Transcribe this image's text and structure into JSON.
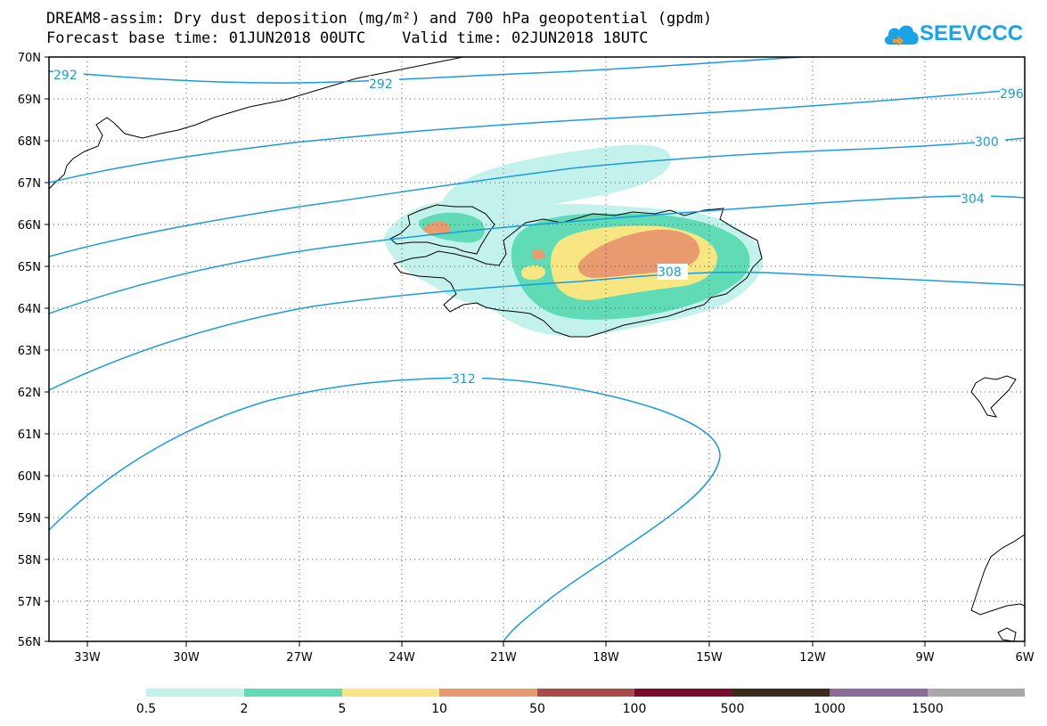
{
  "title_line1": "DREAM8-assim: Dry dust deposition (mg/m²) and 700 hPa geopotential (gpdm)",
  "title_line2": "Forecast base time: 01JUN2018 00UTC    Valid time: 02JUN2018 18UTC",
  "logo_text": "SEEVCCC",
  "lat_labels": [
    "70N",
    "69N",
    "68N",
    "67N",
    "66N",
    "65N",
    "64N",
    "63N",
    "62N",
    "61N",
    "60N",
    "59N",
    "58N",
    "57N",
    "56N"
  ],
  "lon_labels": [
    "33W",
    "30W",
    "27W",
    "24W",
    "21W",
    "18W",
    "15W",
    "12W",
    "9W",
    "6W"
  ],
  "contour_labels": [
    "292",
    "292",
    "296",
    "300",
    "304",
    "308",
    "312"
  ],
  "colorbar": {
    "labels": [
      "0.5",
      "2",
      "5",
      "10",
      "50",
      "100",
      "500",
      "1000",
      "1500"
    ],
    "colors": [
      "#c3f2ec",
      "#5fdcb5",
      "#f8e683",
      "#e99a6e",
      "#a74c48",
      "#7c0c2c",
      "#3a2a1c",
      "#8d6a9a",
      "#a8a8a8"
    ]
  },
  "colors": {
    "contour": "#1a9be0",
    "coast": "#000000"
  }
}
